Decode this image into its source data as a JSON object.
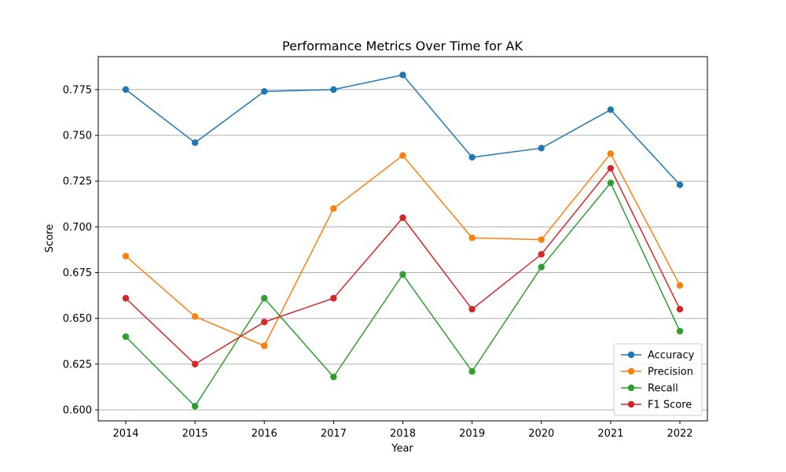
{
  "chart_data": {
    "type": "line",
    "title": "Performance Metrics Over Time for AK",
    "xlabel": "Year",
    "ylabel": "Score",
    "x": [
      "2014",
      "2015",
      "2016",
      "2017",
      "2018",
      "2019",
      "2020",
      "2021",
      "2022"
    ],
    "ylim": [
      0.594,
      0.793
    ],
    "yticks": [
      "0.600",
      "0.625",
      "0.650",
      "0.675",
      "0.700",
      "0.725",
      "0.750",
      "0.775"
    ],
    "grid": "horizontal",
    "legend_position": "lower-right",
    "series": [
      {
        "name": "Accuracy",
        "color": "#1f77b4",
        "values": [
          0.775,
          0.746,
          0.774,
          0.775,
          0.783,
          0.738,
          0.743,
          0.764,
          0.723
        ]
      },
      {
        "name": "Precision",
        "color": "#ff7f0e",
        "values": [
          0.684,
          0.651,
          0.635,
          0.71,
          0.739,
          0.694,
          0.693,
          0.74,
          0.668
        ]
      },
      {
        "name": "Recall",
        "color": "#2ca02c",
        "values": [
          0.64,
          0.602,
          0.661,
          0.618,
          0.674,
          0.621,
          0.678,
          0.724,
          0.643
        ]
      },
      {
        "name": "F1 Score",
        "color": "#d62728",
        "values": [
          0.661,
          0.625,
          0.648,
          0.661,
          0.705,
          0.655,
          0.685,
          0.732,
          0.655
        ]
      }
    ]
  }
}
